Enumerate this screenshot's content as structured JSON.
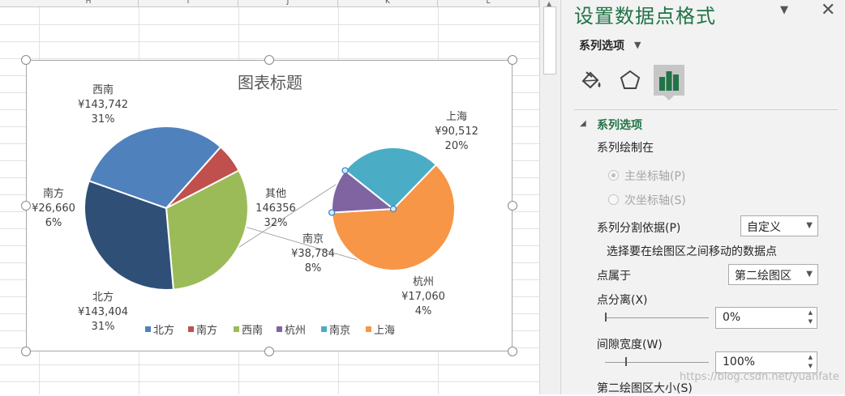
{
  "sheet": {
    "columns": [
      "H",
      "I",
      "J",
      "K",
      "L"
    ]
  },
  "chart_data": {
    "type": "pie",
    "title": "图表标题",
    "primary": [
      {
        "name": "西南",
        "value": 143742,
        "value_label": "¥143,742",
        "percent_label": "31%",
        "color": "#9BBB59"
      },
      {
        "name": "其他",
        "value": 146356,
        "value_label": "146356",
        "percent_label": "32%",
        "color": "#2F4F77"
      },
      {
        "name": "北方",
        "value": 143404,
        "value_label": "¥143,404",
        "percent_label": "31%",
        "color": "#4F81BD"
      },
      {
        "name": "南方",
        "value": 26660,
        "value_label": "¥26,660",
        "percent_label": "6%",
        "color": "#C0504D"
      }
    ],
    "secondary": [
      {
        "name": "上海",
        "value": 90512,
        "value_label": "¥90,512",
        "percent_label": "20%",
        "color": "#F79646"
      },
      {
        "name": "杭州",
        "value": 17060,
        "value_label": "¥17,060",
        "percent_label": "4%",
        "color": "#8064A2"
      },
      {
        "name": "南京",
        "value": 38784,
        "value_label": "¥38,784",
        "percent_label": "8%",
        "color": "#4BACC6"
      }
    ],
    "legend": [
      {
        "name": "北方",
        "color": "#4F81BD"
      },
      {
        "name": "南方",
        "color": "#C0504D"
      },
      {
        "name": "西南",
        "color": "#9BBB59"
      },
      {
        "name": "杭州",
        "color": "#8064A2"
      },
      {
        "name": "南京",
        "color": "#4BACC6"
      },
      {
        "name": "上海",
        "color": "#F79646"
      }
    ],
    "legend_position": "bottom"
  },
  "pane": {
    "title": "设置数据点格式",
    "options_tab": "系列选项",
    "section_title": "系列选项",
    "plot_on_label": "系列绘制在",
    "primary_axis_label": "主坐标轴(P)",
    "secondary_axis_label": "次坐标轴(S)",
    "split_by_label": "系列分割依据(P)",
    "split_by_value": "自定义",
    "hint": "选择要在绘图区之间移动的数据点",
    "point_belongs_label": "点属于",
    "point_belongs_value": "第二绘图区",
    "point_explosion_label": "点分离(X)",
    "point_explosion_value": "0%",
    "gap_width_label": "间隙宽度(W)",
    "gap_width_value": "100%",
    "second_plot_size_label": "第二绘图区大小(S)"
  },
  "watermark": "https://blog.csdn.net/yuanfate"
}
